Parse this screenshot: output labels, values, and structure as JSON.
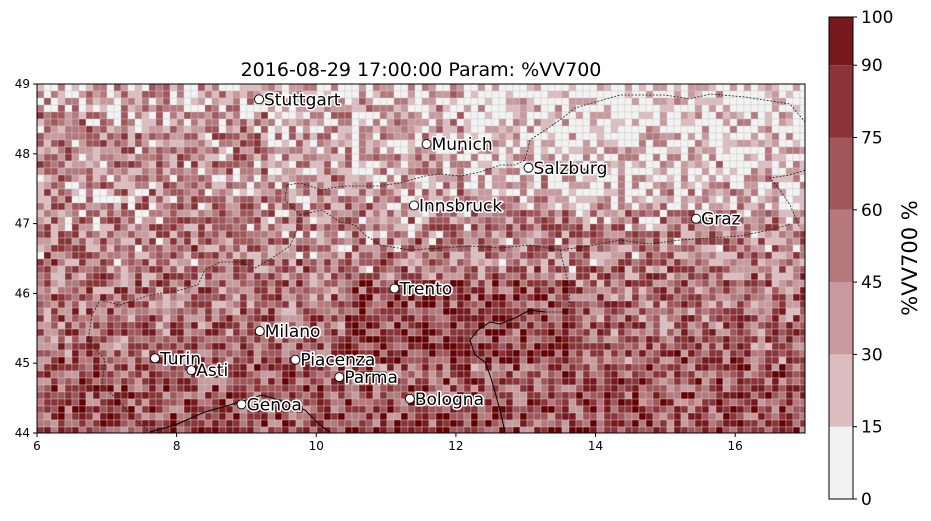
{
  "title": "2016-08-29 17:00:00 Param: %VV700",
  "colorbar": {
    "label": "%VV700  %",
    "bounds": [
      0,
      15,
      30,
      45,
      60,
      75,
      90,
      100
    ],
    "tick_labels": [
      "0",
      "15",
      "30",
      "45",
      "60",
      "75",
      "90",
      "100"
    ],
    "colors": [
      "#f2f2f2",
      "#dcbcbe",
      "#c99a9d",
      "#b5787c",
      "#a0565b",
      "#8a3438",
      "#78191e",
      "#660000"
    ]
  },
  "map": {
    "lon_range": [
      6,
      17
    ],
    "lat_range": [
      44,
      49
    ],
    "x_tick_labels": [
      "6",
      "8",
      "10",
      "12",
      "14",
      "16"
    ],
    "y_tick_labels": [
      "44",
      "45",
      "46",
      "47",
      "48",
      "49"
    ]
  },
  "cities": [
    {
      "name": "Stuttgart",
      "lon": 9.18,
      "lat": 48.78
    },
    {
      "name": "Munich",
      "lon": 11.58,
      "lat": 48.14
    },
    {
      "name": "Salzburg",
      "lon": 13.04,
      "lat": 47.8
    },
    {
      "name": "Innsbruck",
      "lon": 11.4,
      "lat": 47.26
    },
    {
      "name": "Graz",
      "lon": 15.44,
      "lat": 47.07
    },
    {
      "name": "Trento",
      "lon": 11.12,
      "lat": 46.07
    },
    {
      "name": "Milano",
      "lon": 9.19,
      "lat": 45.46
    },
    {
      "name": "Turin",
      "lon": 7.69,
      "lat": 45.07
    },
    {
      "name": "Piacenza",
      "lon": 9.7,
      "lat": 45.05
    },
    {
      "name": "Asti",
      "lon": 8.21,
      "lat": 44.9
    },
    {
      "name": "Parma",
      "lon": 10.33,
      "lat": 44.8
    },
    {
      "name": "Bologna",
      "lon": 11.34,
      "lat": 44.49
    },
    {
      "name": "Genoa",
      "lon": 8.93,
      "lat": 44.41
    }
  ]
}
